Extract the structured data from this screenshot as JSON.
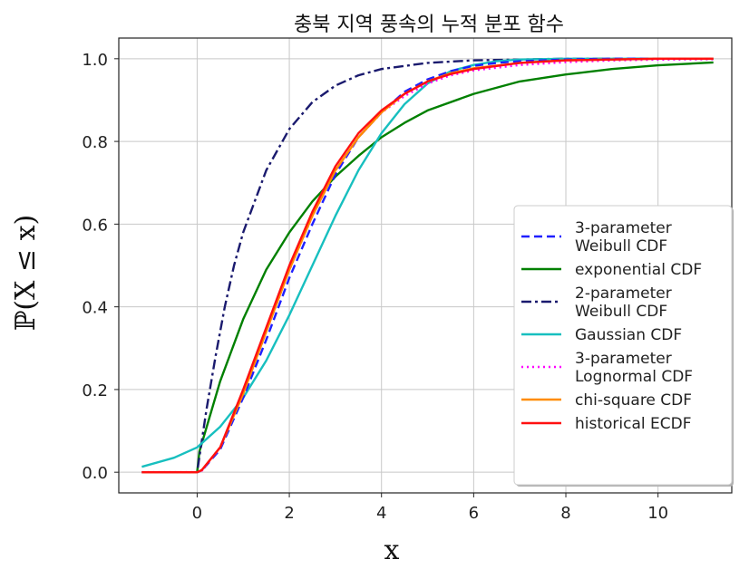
{
  "chart_data": {
    "type": "line",
    "title": "충북 지역 풍속의 누적 분포 함수",
    "xlabel": "x",
    "ylabel": "ℙ(X ≤ x)",
    "xlim": [
      -1.7,
      11.6
    ],
    "ylim": [
      -0.05,
      1.05
    ],
    "xticks": [
      0,
      2,
      4,
      6,
      8,
      10
    ],
    "yticks": [
      0.0,
      0.2,
      0.4,
      0.6,
      0.8,
      1.0
    ],
    "xtick_labels": [
      "0",
      "2",
      "4",
      "6",
      "8",
      "10"
    ],
    "ytick_labels": [
      "0.0",
      "0.2",
      "0.4",
      "0.6",
      "0.8",
      "1.0"
    ],
    "grid": true,
    "legend_position": "center-right",
    "series": [
      {
        "name": "3-parameter Weibull CDF",
        "legend_lines": [
          "3-parameter",
          "Weibull CDF"
        ],
        "color": "#1f1fff",
        "style": "dashed",
        "x": [
          -1.2,
          0.0,
          0.1,
          0.5,
          1.0,
          1.5,
          2.0,
          2.5,
          3.0,
          3.5,
          4.0,
          4.5,
          5.0,
          5.5,
          6.0,
          6.5,
          7.0,
          8.0,
          9.0,
          10.0,
          11.2
        ],
        "y": [
          0.0,
          0.0,
          0.004,
          0.055,
          0.18,
          0.32,
          0.47,
          0.6,
          0.72,
          0.81,
          0.87,
          0.92,
          0.95,
          0.97,
          0.983,
          0.99,
          0.994,
          0.998,
          1.0,
          1.0,
          1.0
        ]
      },
      {
        "name": "exponential CDF",
        "legend_lines": [
          "exponential CDF"
        ],
        "color": "#008000",
        "style": "solid",
        "x": [
          -1.2,
          0.0,
          0.05,
          0.5,
          1.0,
          1.5,
          2.0,
          2.5,
          3.0,
          3.5,
          4.0,
          4.5,
          5.0,
          6.0,
          7.0,
          8.0,
          9.0,
          10.0,
          11.2
        ],
        "y": [
          0.0,
          0.0,
          0.05,
          0.22,
          0.37,
          0.49,
          0.58,
          0.655,
          0.715,
          0.765,
          0.81,
          0.845,
          0.875,
          0.915,
          0.945,
          0.962,
          0.975,
          0.984,
          0.991
        ]
      },
      {
        "name": "2-parameter Weibull CDF",
        "legend_lines": [
          "2-parameter",
          "Weibull CDF"
        ],
        "color": "#1a1a6e",
        "style": "dashdot",
        "x": [
          -1.2,
          0.0,
          0.2,
          0.4,
          0.6,
          0.8,
          1.0,
          1.5,
          2.0,
          2.5,
          3.0,
          3.5,
          4.0,
          5.0,
          6.0,
          7.0,
          8.0,
          10.0,
          11.2
        ],
        "y": [
          0.0,
          0.0,
          0.15,
          0.28,
          0.4,
          0.5,
          0.58,
          0.73,
          0.83,
          0.895,
          0.935,
          0.96,
          0.975,
          0.99,
          0.996,
          0.998,
          1.0,
          1.0,
          1.0
        ]
      },
      {
        "name": "Gaussian CDF",
        "legend_lines": [
          "Gaussian CDF"
        ],
        "color": "#17bfbf",
        "style": "solid",
        "x": [
          -1.2,
          -0.5,
          0.0,
          0.5,
          1.0,
          1.5,
          2.0,
          2.5,
          3.0,
          3.5,
          4.0,
          4.5,
          5.0,
          5.5,
          6.0,
          6.5,
          7.0,
          8.0,
          9.0,
          10.0,
          11.2
        ],
        "y": [
          0.013,
          0.035,
          0.06,
          0.11,
          0.18,
          0.27,
          0.38,
          0.5,
          0.62,
          0.73,
          0.82,
          0.89,
          0.94,
          0.97,
          0.985,
          0.994,
          0.998,
          1.0,
          1.0,
          1.0,
          1.0
        ]
      },
      {
        "name": "3-parameter Lognormal CDF",
        "legend_lines": [
          "3-parameter",
          "Lognormal CDF"
        ],
        "color": "#ff00ff",
        "style": "dotted",
        "x": [
          -1.2,
          0.0,
          0.1,
          0.5,
          1.0,
          1.5,
          2.0,
          2.5,
          3.0,
          3.5,
          4.0,
          4.5,
          5.0,
          5.5,
          6.0,
          7.0,
          8.0,
          9.0,
          10.0,
          11.2
        ],
        "y": [
          0.0,
          0.0,
          0.004,
          0.06,
          0.19,
          0.34,
          0.49,
          0.62,
          0.73,
          0.81,
          0.87,
          0.91,
          0.94,
          0.96,
          0.972,
          0.985,
          0.992,
          0.996,
          0.998,
          0.999
        ]
      },
      {
        "name": "chi-square CDF",
        "legend_lines": [
          "chi-square CDF"
        ],
        "color": "#ff8c00",
        "style": "solid",
        "x": [
          -1.2,
          0.0,
          0.1,
          0.5,
          1.0,
          1.5,
          2.0,
          2.5,
          3.0,
          3.5,
          4.0,
          4.5,
          5.0,
          5.5,
          6.0,
          7.0,
          8.0,
          9.0,
          10.0,
          11.2
        ],
        "y": [
          0.0,
          0.0,
          0.005,
          0.06,
          0.19,
          0.34,
          0.49,
          0.62,
          0.73,
          0.81,
          0.87,
          0.915,
          0.945,
          0.965,
          0.977,
          0.99,
          0.996,
          0.998,
          1.0,
          1.0
        ]
      },
      {
        "name": "historical ECDF",
        "legend_lines": [
          "historical ECDF"
        ],
        "color": "#ff1010",
        "style": "solid",
        "x": [
          -1.2,
          0.0,
          0.1,
          0.5,
          1.0,
          1.5,
          2.0,
          2.5,
          3.0,
          3.5,
          4.0,
          4.5,
          5.0,
          5.5,
          6.0,
          7.0,
          8.0,
          9.0,
          10.0,
          11.2
        ],
        "y": [
          0.0,
          0.0,
          0.005,
          0.06,
          0.2,
          0.35,
          0.5,
          0.63,
          0.74,
          0.82,
          0.875,
          0.915,
          0.945,
          0.963,
          0.975,
          0.99,
          0.996,
          0.998,
          1.0,
          1.0
        ]
      }
    ]
  }
}
